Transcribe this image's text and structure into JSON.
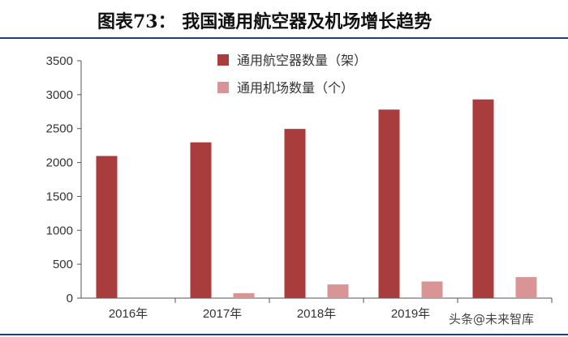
{
  "title": "图表73：   我国通用航空器及机场增长趋势",
  "watermark": "头条@未来智库",
  "colors": {
    "aircraft": "#a93c3c",
    "airport": "#d99595",
    "axis": "#555555"
  },
  "chart_data": {
    "type": "bar",
    "categories": [
      "2016年",
      "2017年",
      "2018年",
      "2019年"
    ],
    "series": [
      {
        "name": "通用航空器数量（架）",
        "values": [
          2096,
          2297,
          2495,
          2780
        ],
        "color_key": "aircraft"
      },
      {
        "name": "通用机场数量（个）",
        "values": [
          0,
          73,
          202,
          246
        ],
        "color_key": "airport"
      }
    ],
    "extra_category_values": {
      "aircraft": 2930,
      "airport": 310
    },
    "ylim": [
      0,
      3500
    ],
    "yticks": [
      0,
      500,
      1000,
      1500,
      2000,
      2500,
      3000,
      3500
    ],
    "legend_position": "top-center",
    "grid": false
  }
}
